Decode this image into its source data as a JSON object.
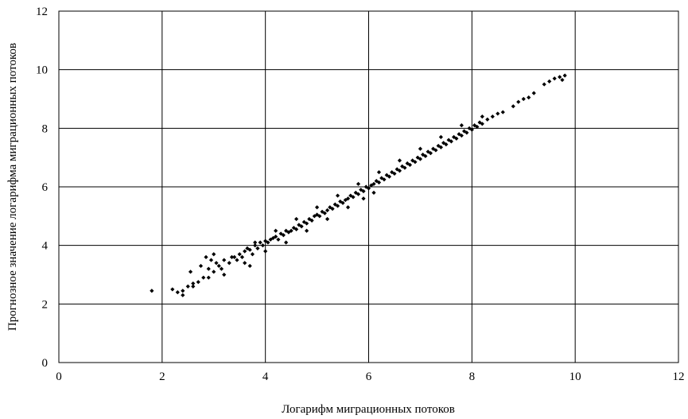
{
  "chart_data": {
    "type": "scatter",
    "title": "",
    "xlabel": "Логарифм миграционных потоков",
    "ylabel": "Прогнозное значение логарифма миграционных потоков",
    "xlim": [
      0,
      12
    ],
    "ylim": [
      0,
      12
    ],
    "x_ticks": [
      "0",
      "2",
      "4",
      "6",
      "8",
      "10",
      "12"
    ],
    "y_ticks": [
      "0",
      "2",
      "4",
      "6",
      "8",
      "10",
      "12"
    ],
    "grid": true,
    "legend": "none",
    "marker_color": "#000000",
    "marker": "diamond",
    "series": [
      {
        "x": [
          1.8,
          2.2,
          2.3,
          2.4,
          2.5,
          2.55,
          2.6,
          2.7,
          2.75,
          2.8,
          2.85,
          2.9,
          2.95,
          3.0,
          3.05,
          3.1,
          3.15,
          3.2,
          3.3,
          3.35,
          3.45,
          3.5,
          3.55,
          3.6,
          3.65,
          3.7,
          3.75,
          3.8,
          3.85,
          3.9,
          3.95,
          4.0,
          4.05,
          4.1,
          4.15,
          4.2,
          4.25,
          4.3,
          4.35,
          4.4,
          4.45,
          4.5,
          4.55,
          4.6,
          4.65,
          4.7,
          4.75,
          4.8,
          4.85,
          4.9,
          4.95,
          5.0,
          5.05,
          5.1,
          5.15,
          5.2,
          5.25,
          5.3,
          5.35,
          5.4,
          5.45,
          5.5,
          5.55,
          5.6,
          5.65,
          5.7,
          5.75,
          5.8,
          5.85,
          5.9,
          5.95,
          6.0,
          6.05,
          6.1,
          6.15,
          6.2,
          6.25,
          6.3,
          6.35,
          6.4,
          6.45,
          6.5,
          6.55,
          6.6,
          6.65,
          6.7,
          6.75,
          6.8,
          6.85,
          6.9,
          6.95,
          7.0,
          7.05,
          7.1,
          7.15,
          7.2,
          7.25,
          7.3,
          7.35,
          7.4,
          7.45,
          7.5,
          7.55,
          7.6,
          7.65,
          7.7,
          7.75,
          7.8,
          7.85,
          7.9,
          7.95,
          8.0,
          8.05,
          8.1,
          8.15,
          8.2,
          8.3,
          8.4,
          8.5,
          8.6,
          8.8,
          8.9,
          9.0,
          9.1,
          9.2,
          9.4,
          9.5,
          9.6,
          9.7,
          9.75,
          9.8,
          2.4,
          2.6,
          2.9,
          3.2,
          3.6,
          3.7,
          4.0,
          4.4,
          4.8,
          5.2,
          5.6,
          5.9,
          6.1,
          3.0,
          3.4,
          3.8,
          4.2,
          4.6,
          5.0,
          5.4,
          5.8,
          6.2,
          6.6,
          7.0,
          7.4,
          7.8,
          8.2
        ],
        "y": [
          2.45,
          2.5,
          2.4,
          2.45,
          2.6,
          3.1,
          2.7,
          2.75,
          3.3,
          2.9,
          3.6,
          3.2,
          3.5,
          3.1,
          3.4,
          3.3,
          3.2,
          3.5,
          3.4,
          3.6,
          3.5,
          3.7,
          3.6,
          3.8,
          3.9,
          3.85,
          3.7,
          4.0,
          3.9,
          4.1,
          4.0,
          4.15,
          4.1,
          4.2,
          4.25,
          4.3,
          4.2,
          4.4,
          4.35,
          4.5,
          4.45,
          4.5,
          4.6,
          4.55,
          4.7,
          4.65,
          4.8,
          4.75,
          4.9,
          4.85,
          5.0,
          5.05,
          5.0,
          5.15,
          5.1,
          5.2,
          5.3,
          5.25,
          5.4,
          5.35,
          5.5,
          5.45,
          5.55,
          5.6,
          5.7,
          5.65,
          5.8,
          5.75,
          5.9,
          5.85,
          6.0,
          5.95,
          6.05,
          6.1,
          6.2,
          6.15,
          6.3,
          6.25,
          6.4,
          6.35,
          6.5,
          6.45,
          6.6,
          6.55,
          6.7,
          6.65,
          6.8,
          6.75,
          6.9,
          6.85,
          7.0,
          6.95,
          7.1,
          7.05,
          7.2,
          7.15,
          7.3,
          7.25,
          7.4,
          7.35,
          7.5,
          7.45,
          7.6,
          7.55,
          7.7,
          7.65,
          7.8,
          7.75,
          7.9,
          7.85,
          8.0,
          7.95,
          8.1,
          8.05,
          8.2,
          8.15,
          8.3,
          8.4,
          8.5,
          8.55,
          8.75,
          8.9,
          9.0,
          9.05,
          9.2,
          9.5,
          9.6,
          9.7,
          9.75,
          9.65,
          9.8,
          2.3,
          2.6,
          2.9,
          3.0,
          3.4,
          3.3,
          3.8,
          4.1,
          4.5,
          4.9,
          5.3,
          5.6,
          5.8,
          3.7,
          3.6,
          4.1,
          4.5,
          4.9,
          5.3,
          5.7,
          6.1,
          6.5,
          6.9,
          7.3,
          7.7,
          8.1,
          8.4
        ]
      }
    ]
  }
}
